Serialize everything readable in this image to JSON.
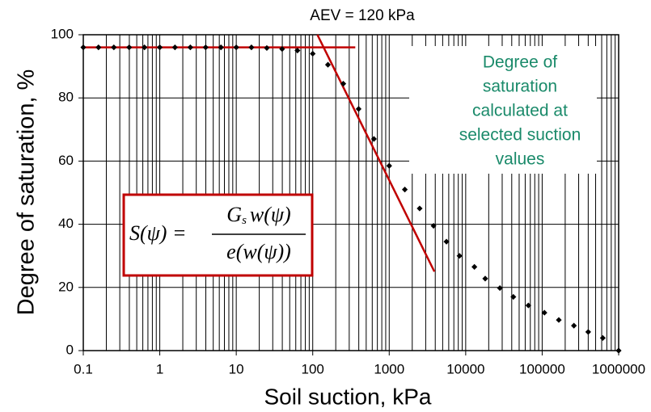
{
  "chart_data": {
    "type": "scatter",
    "title": "AEV = 120 kPa",
    "x_label": "Soil suction, kPa",
    "y_label": "Degree of saturation, %",
    "x_scale": "log",
    "xlim": [
      0.1,
      1000000
    ],
    "ylim": [
      0,
      100
    ],
    "xticks": [
      0.1,
      1,
      10,
      100,
      1000,
      10000,
      100000,
      1000000
    ],
    "yticks": [
      0,
      20,
      40,
      60,
      80,
      100
    ],
    "grid": true,
    "minor_grid": true,
    "marker_color": "#000000",
    "x": [
      0.1,
      0.158,
      0.251,
      0.398,
      0.631,
      1,
      1.58,
      2.51,
      3.98,
      6.31,
      10,
      15.8,
      25.1,
      39.8,
      63.1,
      100,
      158,
      251,
      398,
      631,
      1000,
      1600,
      2500,
      3800,
      5600,
      8300,
      13000,
      18000,
      28000,
      42000,
      66000,
      107000,
      165000,
      260000,
      400000,
      620000,
      1000000
    ],
    "values": [
      96,
      96,
      96,
      96,
      96,
      96,
      96,
      96,
      96,
      96,
      96,
      96,
      95.8,
      95.5,
      95,
      94,
      90.5,
      84.5,
      76.5,
      67,
      58.5,
      51,
      45,
      39.5,
      34.5,
      30,
      26.5,
      22.8,
      19.8,
      17,
      14.3,
      12,
      9.7,
      7.9,
      5.9,
      4,
      0
    ],
    "lines": [
      {
        "color": "#c00000",
        "x": [
          0.1,
          360
        ],
        "values": [
          96,
          96
        ]
      },
      {
        "color": "#c00000",
        "x": [
          115,
          3900
        ],
        "values": [
          100,
          25
        ]
      }
    ],
    "annotation": [
      "Degree of",
      "saturation",
      "calculated at",
      "selected suction",
      "values"
    ],
    "formula": {
      "lhs": "S(ψ) =",
      "numerator": "G",
      "numerator_sub": "s",
      "numerator_rest": "w(ψ)",
      "denominator": "e(w(ψ))",
      "border_color": "#c00000"
    }
  }
}
